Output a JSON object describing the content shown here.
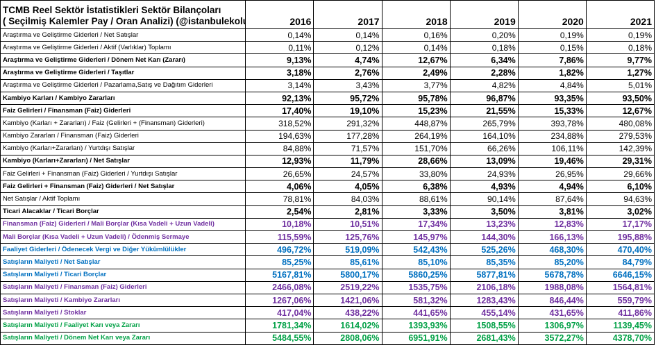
{
  "title_line1": "TCMB Reel Sektör İstatistikleri Sektör Bilançoları",
  "title_line2": "( Seçilmiş Kalemler Pay / Oran Analizi)    (@istanbulekolu)",
  "years": [
    "2016",
    "2017",
    "2018",
    "2019",
    "2020",
    "2021"
  ],
  "colors": {
    "black": "#000000",
    "purple": "#7030a0",
    "blue": "#0070c0",
    "green": "#00a045",
    "grid": "#000000"
  },
  "rows": [
    {
      "label": "Araştırma ve Geliştirme Giderleri / Net Satışlar",
      "bold": false,
      "color": "black",
      "values": [
        "0,14%",
        "0,14%",
        "0,16%",
        "0,20%",
        "0,19%",
        "0,19%"
      ]
    },
    {
      "label": "Araştırma ve Geliştirme Giderleri / Aktif (Varlıklar) Toplamı",
      "bold": false,
      "color": "black",
      "values": [
        "0,11%",
        "0,12%",
        "0,14%",
        "0,18%",
        "0,15%",
        "0,18%"
      ]
    },
    {
      "label": "Araştırma ve Geliştirme Giderleri / Dönem Net Karı (Zararı)",
      "bold": true,
      "color": "black",
      "values": [
        "9,13%",
        "4,74%",
        "12,67%",
        "6,34%",
        "7,86%",
        "9,77%"
      ]
    },
    {
      "label": "Araştırma ve Geliştirme Giderleri / Taşıtlar",
      "bold": true,
      "color": "black",
      "values": [
        "3,18%",
        "2,76%",
        "2,49%",
        "2,28%",
        "1,82%",
        "1,27%"
      ]
    },
    {
      "label": "Araştırma ve Geliştirme Giderleri / Pazarlama,Satış ve Dağıtım Giderleri",
      "bold": false,
      "color": "black",
      "values": [
        "3,14%",
        "3,43%",
        "3,77%",
        "4,82%",
        "4,84%",
        "5,01%"
      ]
    },
    {
      "label": "Kambiyo Karları / Kambiyo Zararları",
      "bold": true,
      "color": "black",
      "values": [
        "92,13%",
        "95,72%",
        "95,78%",
        "96,87%",
        "93,35%",
        "93,50%"
      ]
    },
    {
      "label": "Faiz Gelirleri / Finansman (Faiz) Giderleri",
      "bold": true,
      "color": "black",
      "values": [
        "17,40%",
        "19,10%",
        "15,23%",
        "21,55%",
        "15,33%",
        "12,67%"
      ]
    },
    {
      "label": "Kambiyo (Karları + Zararları) / Faiz (Gelirleri + (Finansman) Giderleri)",
      "bold": false,
      "color": "black",
      "values": [
        "318,52%",
        "291,32%",
        "448,87%",
        "265,79%",
        "393,78%",
        "480,08%"
      ]
    },
    {
      "label": "Kambiyo Zararları / Finansman (Faiz) Giderleri",
      "bold": false,
      "color": "black",
      "values": [
        "194,63%",
        "177,28%",
        "264,19%",
        "164,10%",
        "234,88%",
        "279,53%"
      ]
    },
    {
      "label": "Kambiyo (Karları+Zararları) / Yurtdışı Satışlar",
      "bold": false,
      "color": "black",
      "values": [
        "84,88%",
        "71,57%",
        "151,70%",
        "66,26%",
        "106,11%",
        "142,39%"
      ]
    },
    {
      "label": "Kambiyo (Karları+Zararları) / Net Satışlar",
      "bold": true,
      "color": "black",
      "values": [
        "12,93%",
        "11,79%",
        "28,66%",
        "13,09%",
        "19,46%",
        "29,31%"
      ]
    },
    {
      "label": "Faiz Gelirleri + Finansman (Faiz) Giderleri / Yurtdışı Satışlar",
      "bold": false,
      "color": "black",
      "values": [
        "26,65%",
        "24,57%",
        "33,80%",
        "24,93%",
        "26,95%",
        "29,66%"
      ]
    },
    {
      "label": "Faiz Gelirleri + Finansman (Faiz) Giderleri / Net Satışlar",
      "bold": true,
      "color": "black",
      "values": [
        "4,06%",
        "4,05%",
        "6,38%",
        "4,93%",
        "4,94%",
        "6,10%"
      ]
    },
    {
      "label": "Net Satışlar / Aktif Toplamı",
      "bold": false,
      "color": "black",
      "values": [
        "78,81%",
        "84,03%",
        "88,61%",
        "90,14%",
        "87,64%",
        "94,63%"
      ]
    },
    {
      "label": "Ticari Alacaklar / Ticari Borçlar",
      "bold": true,
      "color": "black",
      "values": [
        "2,54%",
        "2,81%",
        "3,33%",
        "3,50%",
        "3,81%",
        "3,02%"
      ]
    },
    {
      "label": "Finansman (Faiz) Giderleri / Mali Borçlar (Kısa Vadeli + Uzun Vadeli)",
      "bold": true,
      "color": "purple",
      "values": [
        "10,18%",
        "10,51%",
        "17,34%",
        "13,23%",
        "12,83%",
        "17,17%"
      ]
    },
    {
      "label": "Mali Borçlar (Kısa Vadeli + Uzun Vadeli) / Ödenmiş Sermaye",
      "bold": true,
      "color": "purple",
      "values": [
        "115,59%",
        "125,76%",
        "145,97%",
        "144,30%",
        "166,13%",
        "195,88%"
      ]
    },
    {
      "label": "Faaliyet Giderleri / Ödenecek Vergi ve Diğer Yükümlülükler",
      "bold": true,
      "color": "blue",
      "values": [
        "496,72%",
        "519,09%",
        "542,43%",
        "525,26%",
        "468,30%",
        "470,40%"
      ]
    },
    {
      "label": "Satışların Maliyeti / Net Satışlar",
      "bold": true,
      "color": "blue",
      "values": [
        "85,25%",
        "85,61%",
        "85,10%",
        "85,35%",
        "85,20%",
        "84,79%"
      ]
    },
    {
      "label": "Satışların Maliyeti / Ticari Borçlar",
      "bold": true,
      "color": "blue",
      "values": [
        "5167,81%",
        "5800,17%",
        "5860,25%",
        "5877,81%",
        "5678,78%",
        "6646,15%"
      ]
    },
    {
      "label": "Satışların Maliyeti / Finansman (Faiz) Giderleri",
      "bold": true,
      "color": "purple",
      "values": [
        "2466,08%",
        "2519,22%",
        "1535,75%",
        "2106,18%",
        "1988,08%",
        "1564,81%"
      ]
    },
    {
      "label": "Satışların Maliyeti / Kambiyo Zararları",
      "bold": true,
      "color": "purple",
      "values": [
        "1267,06%",
        "1421,06%",
        "581,32%",
        "1283,43%",
        "846,44%",
        "559,79%"
      ]
    },
    {
      "label": "Satışların Maliyeti / Stoklar",
      "bold": true,
      "color": "purple",
      "values": [
        "417,04%",
        "438,22%",
        "441,65%",
        "455,14%",
        "431,65%",
        "411,86%"
      ]
    },
    {
      "label": "Satışların Maliyeti / Faaliyet Karı veya Zararı",
      "bold": true,
      "color": "green",
      "values": [
        "1781,34%",
        "1614,02%",
        "1393,93%",
        "1508,55%",
        "1306,97%",
        "1139,45%"
      ]
    },
    {
      "label": "Satışların Maliyeti / Dönem Net Karı veya Zararı",
      "bold": true,
      "color": "green",
      "values": [
        "5484,55%",
        "2808,06%",
        "6951,91%",
        "2681,43%",
        "3572,27%",
        "4378,70%"
      ]
    }
  ]
}
